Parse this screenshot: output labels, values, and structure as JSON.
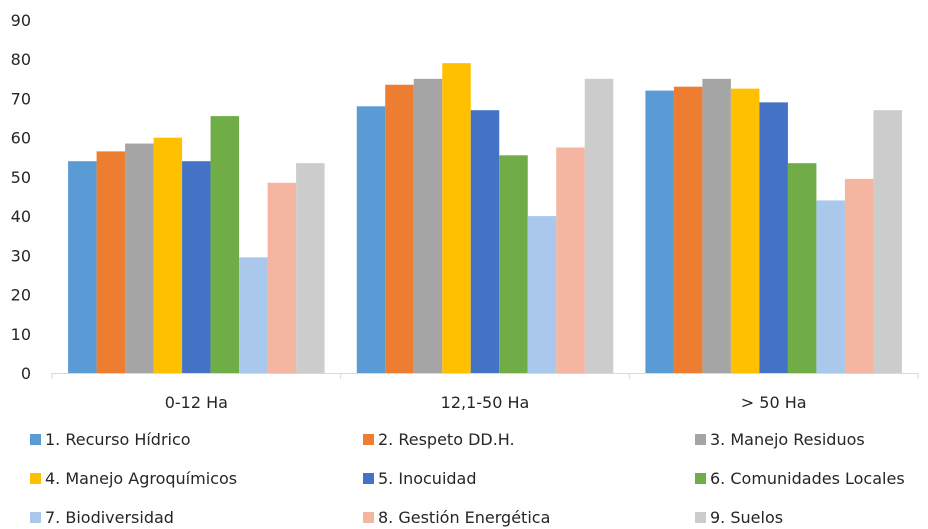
{
  "chart_data": {
    "type": "bar",
    "categories": [
      "0-12 Ha",
      "12,1-50 Ha",
      "> 50 Ha"
    ],
    "ylim": [
      0,
      90
    ],
    "yticks": [
      0,
      10,
      20,
      30,
      40,
      50,
      60,
      70,
      80,
      90
    ],
    "grid": false,
    "legend_position": "bottom",
    "series": [
      {
        "name": "1. Recurso Hídrico",
        "values": [
          54,
          68,
          72
        ],
        "color": "#5b9bd5"
      },
      {
        "name": "2. Respeto DD.H.",
        "values": [
          56.5,
          73.5,
          73
        ],
        "color": "#ed7d31"
      },
      {
        "name": "3. Manejo Residuos",
        "values": [
          58.5,
          75,
          75
        ],
        "color": "#a5a5a5"
      },
      {
        "name": "4. Manejo Agroquímicos",
        "values": [
          60,
          79,
          72.5
        ],
        "color": "#ffc000"
      },
      {
        "name": "5. Inocuidad",
        "values": [
          54,
          67,
          69
        ],
        "color": "#4472c4"
      },
      {
        "name": "6. Comunidades Locales",
        "values": [
          65.5,
          55.5,
          53.5
        ],
        "color": "#70ad47"
      },
      {
        "name": "7. Biodiversidad",
        "values": [
          29.5,
          40,
          44
        ],
        "color": "#a9c8ec"
      },
      {
        "name": "8. Gestión Energética",
        "values": [
          48.5,
          57.5,
          49.5
        ],
        "color": "#f4b6a0"
      },
      {
        "name": "9. Suelos",
        "values": [
          53.5,
          75,
          67
        ],
        "color": "#cccccc"
      }
    ]
  }
}
